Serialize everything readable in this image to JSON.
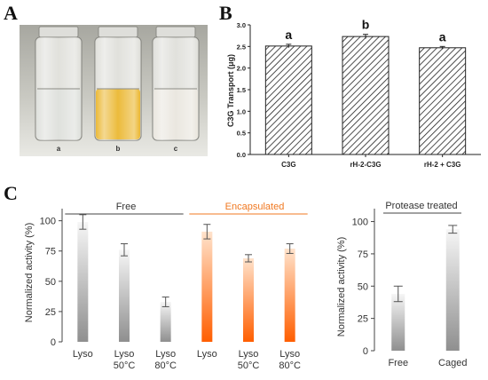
{
  "panel_labels": {
    "a": "A",
    "b": "B",
    "c": "C"
  },
  "photo": {
    "vial_labels": [
      "a",
      "b",
      "c"
    ],
    "liquid_colors": [
      "#d7d9d4",
      "#e8a800",
      "#e6e2d8"
    ]
  },
  "colors": {
    "free_bar": "#9a9a9a",
    "encapsulated_bar": "#ff6a10",
    "encapsulated_text": "#f07820",
    "protease_bar": "#9a9a9a",
    "axis": "#333333"
  },
  "chart_data": [
    {
      "type": "bar",
      "categories": [
        "C3G",
        "rH-2-C3G",
        "rH-2 + C3G"
      ],
      "values": [
        2.51,
        2.73,
        2.47
      ],
      "errors": [
        0.04,
        0.05,
        0.03
      ],
      "significance": [
        "a",
        "b",
        "a"
      ],
      "ylabel": "C3G Transport (μg)",
      "xlabel": "",
      "ylim": [
        0,
        3.0
      ],
      "yticks": [
        "0.0",
        "0.5",
        "1.0",
        "1.5",
        "2.0",
        "2.5",
        "3.0"
      ],
      "bar_style": "hatched",
      "grid": false
    },
    {
      "type": "bar",
      "categories": [
        "Lyso",
        "Lyso\n50°C",
        "Lyso\n80°C",
        "Lyso",
        "Lyso\n50°C",
        "Lyso\n80°C"
      ],
      "groups": [
        {
          "name": "Free",
          "indices": [
            0,
            1,
            2
          ]
        },
        {
          "name": "Encapsulated",
          "indices": [
            3,
            4,
            5
          ]
        }
      ],
      "values": [
        99,
        76,
        33,
        91,
        69,
        77
      ],
      "errors": [
        6,
        5,
        4,
        6,
        3,
        4
      ],
      "ylabel": "Normalized activity (%)",
      "xlabel": "",
      "ylim": [
        0,
        110
      ],
      "yticks": [
        "0",
        "25",
        "50",
        "75",
        "100"
      ],
      "grid": false
    },
    {
      "type": "bar",
      "title": "Protease treated",
      "categories": [
        "Free",
        "Caged"
      ],
      "values": [
        44,
        94
      ],
      "errors": [
        6,
        3
      ],
      "ylabel": "Normalized activity  (%)",
      "xlabel": "",
      "ylim": [
        0,
        110
      ],
      "yticks": [
        "0",
        "25",
        "50",
        "75",
        "100"
      ],
      "grid": false
    }
  ]
}
